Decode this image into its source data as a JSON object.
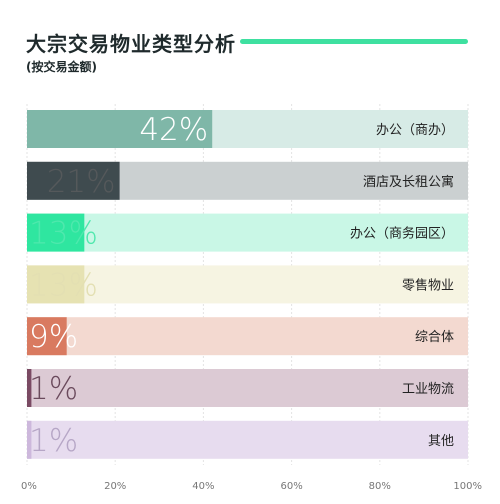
{
  "chart_data": {
    "type": "bar",
    "orientation": "horizontal",
    "title": "大宗交易物业类型分析",
    "subtitle": "(按交易金额)",
    "categories": [
      "办公（商办）",
      "酒店及长租公寓",
      "办公（商务园区）",
      "零售物业",
      "综合体",
      "工业物流",
      "其他"
    ],
    "values": [
      42,
      21,
      13,
      13,
      9,
      1,
      1
    ],
    "value_labels": [
      "42%",
      "21%",
      "13%",
      "13%",
      "9%",
      "1%",
      "1%"
    ],
    "xlim": [
      0,
      100
    ],
    "x_ticks": [
      "0%",
      "20%",
      "40%",
      "60%",
      "80%",
      "100%"
    ],
    "grid": true,
    "colors": {
      "bars": [
        "#7fb7a8",
        "#3f4b4f",
        "#2fe6a0",
        "#e6e2b2",
        "#d97a60",
        "#7a4a63",
        "#cdb8dc"
      ],
      "tracks": [
        "#d7ebe6",
        "#cbd0d1",
        "#c9f7e6",
        "#f6f4e2",
        "#f3d9d0",
        "#dccad4",
        "#e7dcef"
      ],
      "labels": [
        "#ffffff",
        "#55595b",
        "#4fe8ad",
        "#e3dfb2",
        "#ffffff",
        "#6a4a5c",
        "#b6a6c6"
      ],
      "accent_line": "#3ee0a0"
    }
  }
}
